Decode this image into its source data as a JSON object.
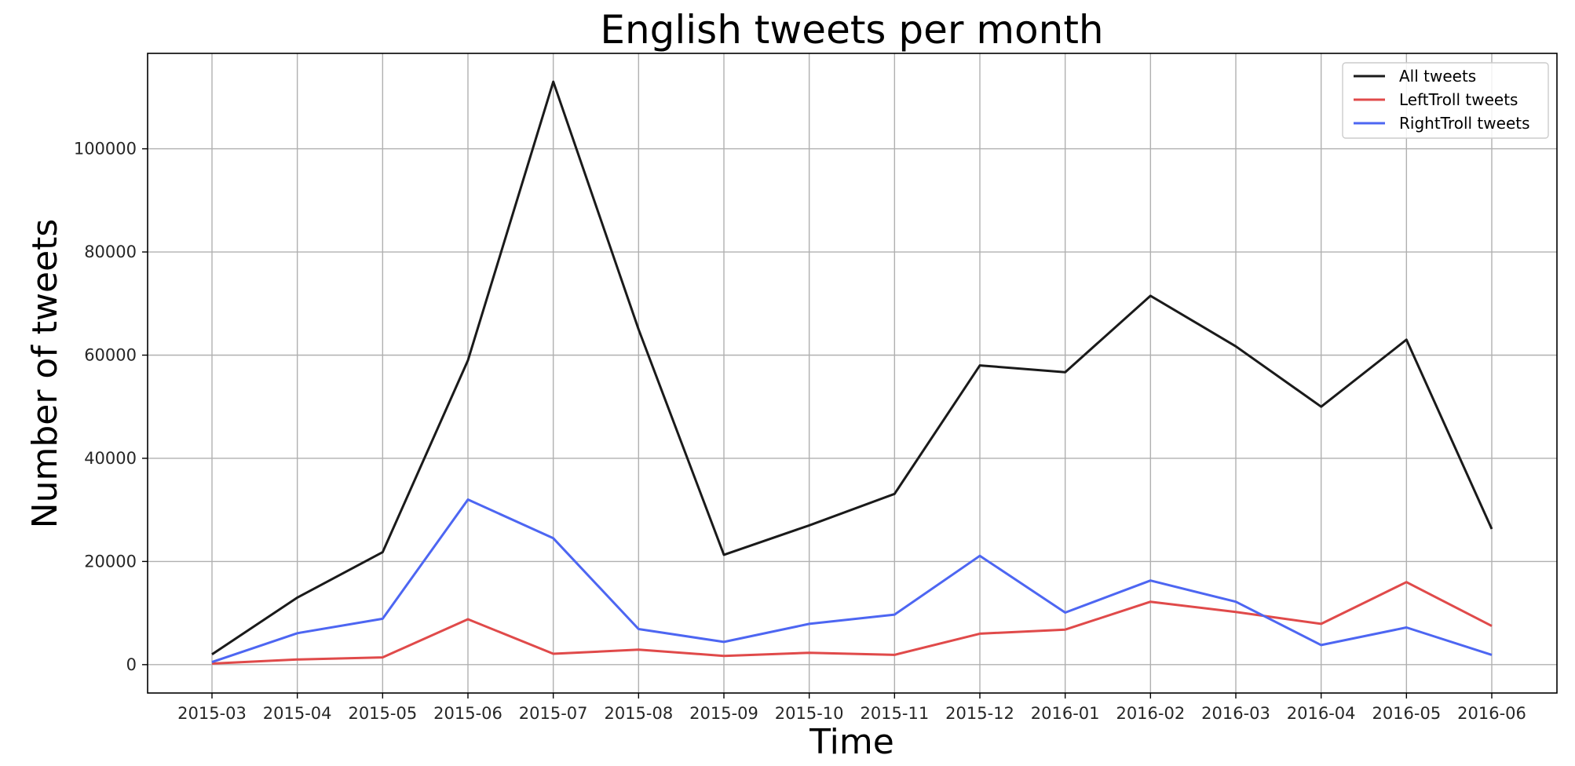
{
  "chart_data": {
    "type": "line",
    "title": "English tweets per month",
    "xlabel": "Time",
    "ylabel": "Number of tweets",
    "categories": [
      "2015-03",
      "2015-04",
      "2015-05",
      "2015-06",
      "2015-07",
      "2015-08",
      "2015-09",
      "2015-10",
      "2015-11",
      "2015-12",
      "2016-01",
      "2016-02",
      "2016-03",
      "2016-04",
      "2016-05",
      "2016-06"
    ],
    "yticks": [
      0,
      20000,
      40000,
      60000,
      80000,
      100000
    ],
    "ylim": [
      -5500,
      118500
    ],
    "grid": true,
    "legend_position": "top-right",
    "series": [
      {
        "name": "All tweets",
        "color": "#1a1a1a",
        "values": [
          2000,
          13000,
          21800,
          59000,
          113000,
          65000,
          21300,
          27000,
          33100,
          58000,
          56700,
          71500,
          61700,
          50000,
          63000,
          26300
        ]
      },
      {
        "name": "LeftTroll tweets",
        "color": "#e04a4a",
        "values": [
          200,
          1000,
          1400,
          8800,
          2100,
          2900,
          1700,
          2300,
          1900,
          6000,
          6800,
          12200,
          10200,
          7900,
          16000,
          7500
        ]
      },
      {
        "name": "RightTroll tweets",
        "color": "#4d66f2",
        "values": [
          500,
          6100,
          8900,
          32000,
          24500,
          6900,
          4400,
          7900,
          9700,
          21100,
          10100,
          16300,
          12200,
          3800,
          7200,
          1900
        ]
      }
    ]
  }
}
